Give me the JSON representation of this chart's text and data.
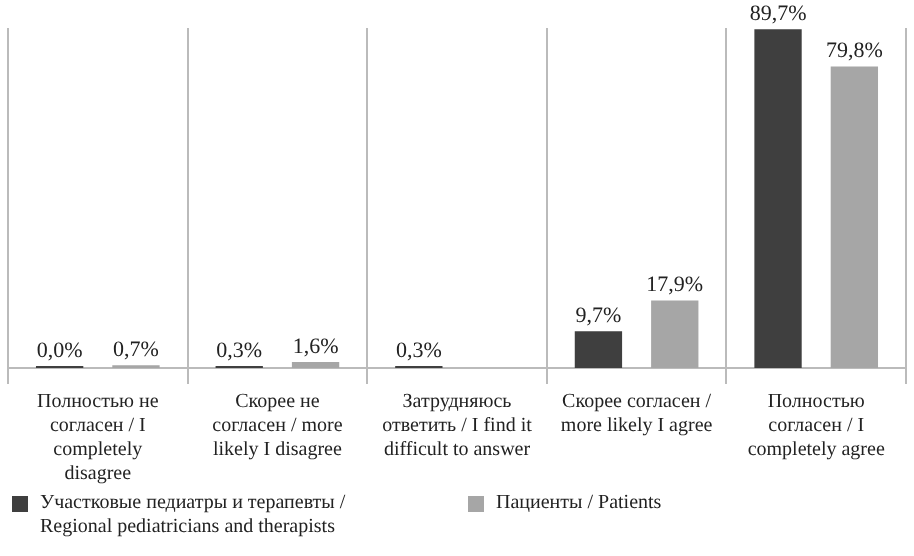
{
  "chart_data": {
    "type": "bar",
    "categories": [
      "Полностью не согласен / I completely disagree",
      "Скорее не согласен / more likely I disagree",
      "Затрудняюсь ответить / I find it difficult to answer",
      "Скорее согласен / more likely I agree",
      "Полностью согласен / I completely agree"
    ],
    "series": [
      {
        "name": "Участковые педиатры и терапевты / Regional pediatricians and therapists",
        "color": "#3f3f3f",
        "values": [
          0.0,
          0.3,
          0.3,
          9.7,
          89.7
        ],
        "value_labels": [
          "0,0%",
          "0,3%",
          "0,3%",
          "9,7%",
          "89,7%"
        ]
      },
      {
        "name": "Пациенты / Patients",
        "color": "#a6a6a6",
        "values": [
          0.7,
          1.6,
          null,
          17.9,
          79.8
        ],
        "value_labels": [
          "0,7%",
          "1,6%",
          null,
          "17,9%",
          "79,8%"
        ]
      }
    ],
    "grid": "x",
    "legend": "bottom"
  }
}
